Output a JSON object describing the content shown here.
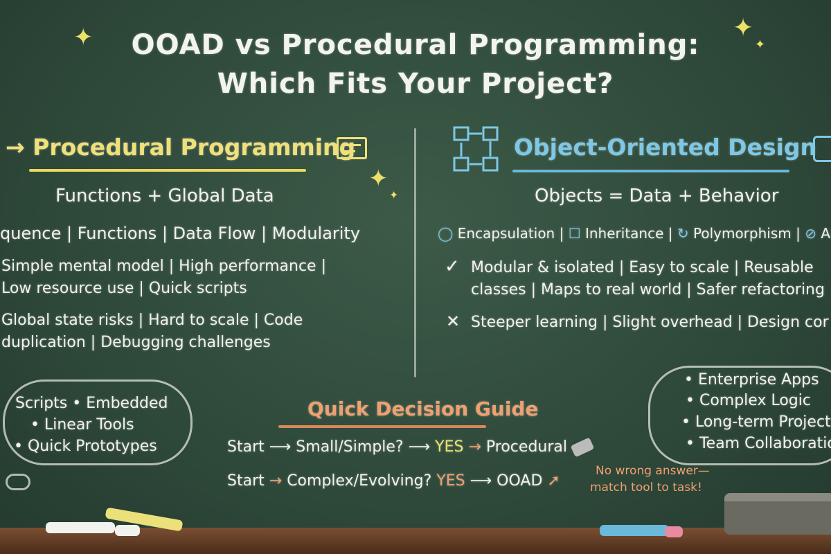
{
  "title": {
    "line1": "OOAD vs Procedural Programming:",
    "line2": "Which Fits Your Project?"
  },
  "procedural": {
    "heading": "→ Procedural Programming",
    "icon": "document-lines-icon",
    "subtitle": "Functions + Global Data",
    "concepts": "quence | Functions | Data Flow | Modularity",
    "pros": [
      "Simple mental model | High performance |",
      "Low resource use | Quick scripts"
    ],
    "cons": [
      "Global state risks | Hard to scale | Code",
      "duplication | Debugging challenges"
    ],
    "use_cases": [
      "Scripts • Embedded",
      "• Linear Tools",
      "• Quick Prototypes"
    ]
  },
  "ood": {
    "heading": "Object-Oriented Design",
    "icon": "flow-boxes-icon",
    "subtitle": "Objects = Data + Behavior",
    "concepts": [
      {
        "icon": "check-circle-icon",
        "label": "Encapsulation |"
      },
      {
        "icon": "edit-square-icon",
        "label": "Inheritance |"
      },
      {
        "icon": "cycle-icon",
        "label": "Polymorphism |"
      },
      {
        "icon": "slash-circle-icon",
        "label": "Ab"
      }
    ],
    "pros_mark": "✓",
    "pros": [
      "Modular & isolated | Easy to scale | Reusable",
      "classes | Maps to real world | Safer refactoring"
    ],
    "cons_mark": "✕",
    "cons": [
      "Steeper learning | Slight overhead | Design cor"
    ],
    "use_cases": [
      "• Enterprise Apps",
      "• Complex Logic",
      "• Long-term Projects",
      "• Team Collaboration"
    ]
  },
  "guide": {
    "heading": "Quick Decision Guide",
    "row1": {
      "start": "Start",
      "arrow1": "⟶",
      "q": "Small/Simple?",
      "arrow2": "⟶",
      "yes": "YES",
      "arrow3": "→",
      "result": "Procedural"
    },
    "row2": {
      "start": "Start",
      "arrow1": "→",
      "q": "Complex/Evolving?",
      "yes": "YES",
      "arrow2": "⟶",
      "result": "OOAD"
    },
    "note": [
      "No wrong answer—",
      "match tool to task!"
    ]
  },
  "colors": {
    "board": "#2f4a3b",
    "procedural": "#f0e07a",
    "ood": "#7ec8e6",
    "guide": "#f0a070",
    "yes": "#ece26a"
  }
}
